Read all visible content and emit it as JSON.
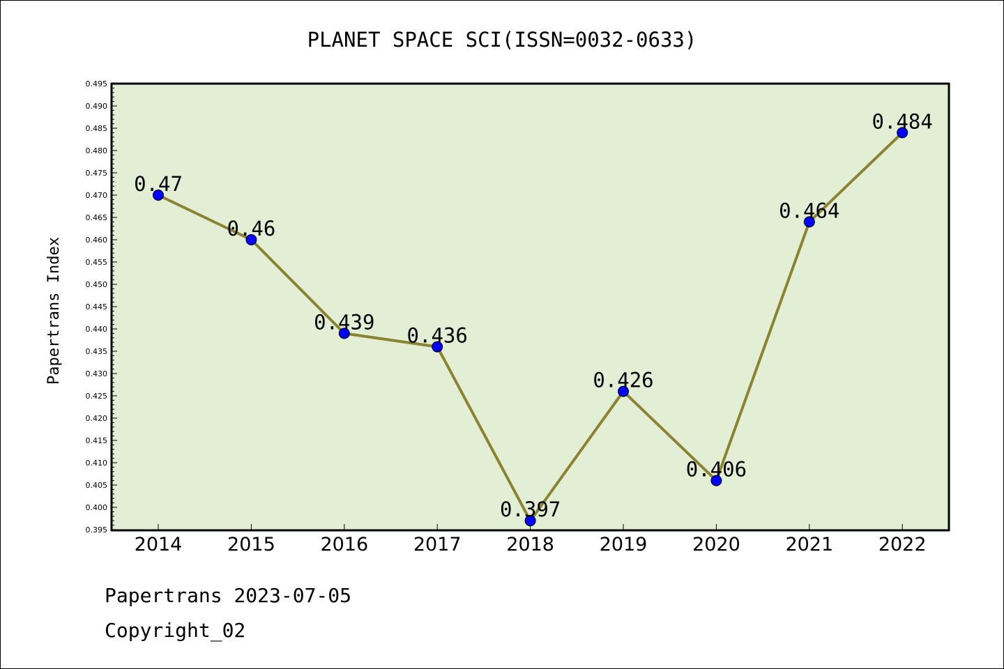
{
  "chart_data": {
    "type": "line",
    "title": "PLANET SPACE SCI(ISSN=0032-0633)",
    "xlabel": "",
    "ylabel": "Papertrans Index",
    "categories": [
      "2014",
      "2015",
      "2016",
      "2017",
      "2018",
      "2019",
      "2020",
      "2021",
      "2022"
    ],
    "series": [
      {
        "values": [
          0.47,
          0.46,
          0.439,
          0.436,
          0.397,
          0.426,
          0.406,
          0.464,
          0.484
        ],
        "labels": [
          "0.47",
          "0.46",
          "0.439",
          "0.436",
          "0.397",
          "0.426",
          "0.406",
          "0.464",
          "0.484"
        ]
      }
    ],
    "ylim": [
      0.395,
      0.495
    ],
    "yticks": [
      "0.395",
      "0.400",
      "0.405",
      "0.410",
      "0.415",
      "0.420",
      "0.425",
      "0.430",
      "0.435",
      "0.440",
      "0.445",
      "0.450",
      "0.455",
      "0.460",
      "0.465",
      "0.470",
      "0.475",
      "0.480",
      "0.485",
      "0.490",
      "0.495"
    ],
    "grid": false,
    "legend": "none",
    "colors": {
      "plot_background": "#e2efd4",
      "line": "#8b8232",
      "marker": "#0000ff"
    }
  },
  "footer": {
    "line1": "Papertrans 2023-07-05",
    "line2": "Copyright_02"
  }
}
